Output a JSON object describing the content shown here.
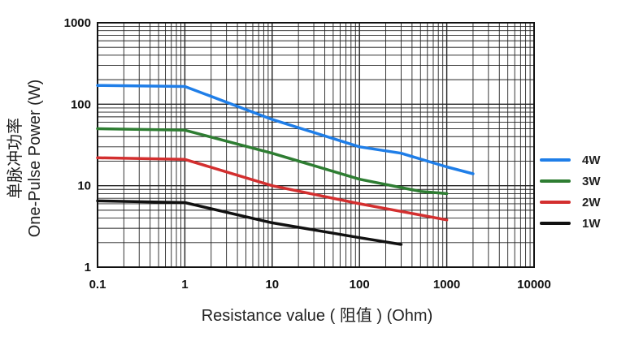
{
  "chart_data": {
    "type": "line",
    "x_scale": "log",
    "y_scale": "log",
    "xlim": [
      0.1,
      10000
    ],
    "ylim": [
      1,
      1000
    ],
    "x_ticks": [
      "0.1",
      "1",
      "10",
      "100",
      "1000",
      "10000"
    ],
    "y_ticks": [
      "1",
      "10",
      "100",
      "1000"
    ],
    "xlabel": "Resistance value ( 阻值 ) (Ohm)",
    "ylabel_cn": "单脉冲功率",
    "ylabel_en": "One-Pulse Power (W)",
    "grid": true,
    "legend_position": "right",
    "series": [
      {
        "name": "4W",
        "color": "#1f7ee8",
        "x": [
          0.1,
          1,
          10,
          100,
          300,
          1000,
          2000
        ],
        "y": [
          170,
          165,
          65,
          30,
          25,
          17,
          14
        ]
      },
      {
        "name": "3W",
        "color": "#2e7d32",
        "x": [
          0.1,
          1,
          10,
          100,
          500,
          1000
        ],
        "y": [
          50,
          48,
          25,
          12,
          8.5,
          8
        ]
      },
      {
        "name": "2W",
        "color": "#d32f2f",
        "x": [
          0.1,
          1,
          10,
          100,
          1000
        ],
        "y": [
          22,
          21,
          10,
          6,
          3.8
        ]
      },
      {
        "name": "1W",
        "color": "#111111",
        "x": [
          0.1,
          1,
          10,
          100,
          300
        ],
        "y": [
          6.5,
          6.2,
          3.5,
          2.3,
          1.9
        ]
      }
    ]
  }
}
